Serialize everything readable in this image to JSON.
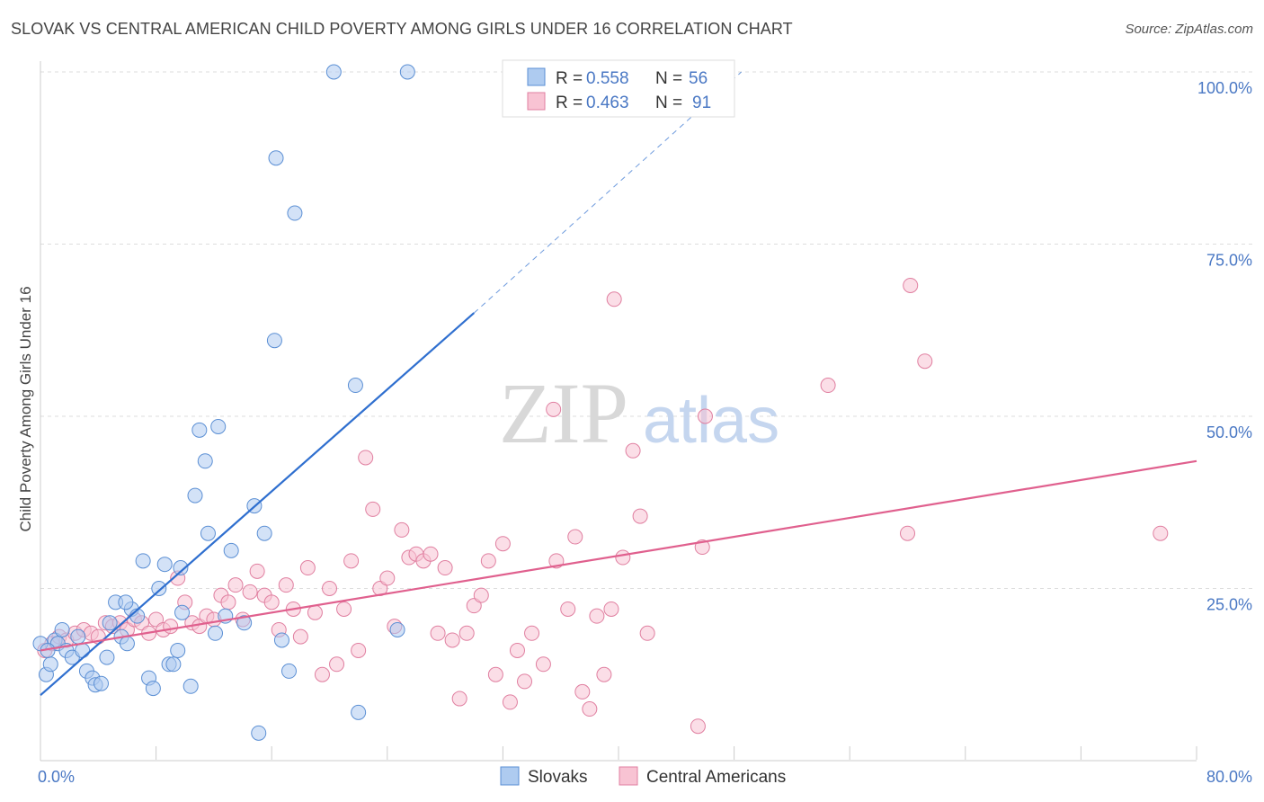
{
  "header": {
    "title": "SLOVAK VS CENTRAL AMERICAN CHILD POVERTY AMONG GIRLS UNDER 16 CORRELATION CHART",
    "source": "Source: ZipAtlas.com"
  },
  "watermark": {
    "zip": "ZIP",
    "atlas": "atlas"
  },
  "colors": {
    "slovak_fill": "#aecbf0",
    "slovak_stroke": "#5b8fd4",
    "slovak_line": "#2f6fcf",
    "central_fill": "#f8c3d3",
    "central_stroke": "#e07fa0",
    "central_line": "#e0608e",
    "tick": "#4a78c4",
    "grid": "#dddddd"
  },
  "legend_top": {
    "rows": [
      {
        "r_label": "R =",
        "r_value": "0.558",
        "n_label": "N =",
        "n_value": "56"
      },
      {
        "r_label": "R =",
        "r_value": "0.463",
        "n_label": "N =",
        "n_value": "91"
      }
    ]
  },
  "legend_bottom": {
    "items": [
      "Slovaks",
      "Central Americans"
    ]
  },
  "chart_data": {
    "type": "scatter",
    "title": "SLOVAK VS CENTRAL AMERICAN CHILD POVERTY AMONG GIRLS UNDER 16 CORRELATION CHART",
    "xlabel": "",
    "ylabel": "Child Poverty Among Girls Under 16",
    "xlim": [
      0,
      80
    ],
    "ylim": [
      0,
      100
    ],
    "x_tick_labels": [
      "0.0%",
      "80.0%"
    ],
    "y_tick_labels": [
      "25.0%",
      "50.0%",
      "75.0%",
      "100.0%"
    ],
    "y_ticks": [
      25,
      50,
      75,
      100
    ],
    "grid": true,
    "legend_position": "top-center",
    "series": [
      {
        "name": "Slovaks",
        "r": 0.558,
        "n": 56,
        "trend": {
          "x0": 0,
          "y0": 9.5,
          "x1": 30.0,
          "y1": 65.0,
          "dash_to_x": 48.5,
          "dash_to_y": 100
        },
        "points": [
          [
            0.0,
            17.0
          ],
          [
            0.4,
            12.5
          ],
          [
            0.7,
            14.0
          ],
          [
            1.0,
            17.5
          ],
          [
            1.2,
            17.0
          ],
          [
            1.5,
            19.0
          ],
          [
            1.8,
            16.0
          ],
          [
            2.2,
            15.0
          ],
          [
            2.6,
            18.0
          ],
          [
            3.2,
            13.0
          ],
          [
            3.6,
            12.0
          ],
          [
            3.8,
            11.0
          ],
          [
            4.2,
            11.2
          ],
          [
            4.8,
            20.0
          ],
          [
            5.2,
            23.0
          ],
          [
            5.6,
            18.0
          ],
          [
            6.0,
            17.0
          ],
          [
            6.3,
            22.0
          ],
          [
            6.7,
            21.0
          ],
          [
            7.1,
            29.0
          ],
          [
            7.5,
            12.0
          ],
          [
            7.8,
            10.5
          ],
          [
            8.2,
            25.0
          ],
          [
            8.6,
            28.5
          ],
          [
            8.9,
            14.0
          ],
          [
            9.2,
            14.0
          ],
          [
            9.7,
            28.0
          ],
          [
            9.8,
            21.5
          ],
          [
            10.4,
            10.8
          ],
          [
            10.7,
            38.5
          ],
          [
            11.0,
            48.0
          ],
          [
            11.4,
            43.5
          ],
          [
            11.6,
            33.0
          ],
          [
            12.1,
            18.5
          ],
          [
            12.3,
            48.5
          ],
          [
            12.8,
            21.0
          ],
          [
            13.2,
            30.5
          ],
          [
            14.1,
            20.0
          ],
          [
            14.8,
            37.0
          ],
          [
            15.1,
            4.0
          ],
          [
            15.5,
            33.0
          ],
          [
            16.2,
            61.0
          ],
          [
            16.3,
            87.5
          ],
          [
            16.7,
            17.5
          ],
          [
            17.2,
            13.0
          ],
          [
            17.6,
            79.5
          ],
          [
            20.3,
            100.0
          ],
          [
            21.8,
            54.5
          ],
          [
            22.0,
            7.0
          ],
          [
            24.7,
            19.0
          ],
          [
            25.4,
            100.0
          ],
          [
            4.6,
            15.0
          ],
          [
            5.9,
            23.0
          ],
          [
            0.5,
            16.0
          ],
          [
            9.5,
            16.0
          ],
          [
            2.9,
            16.0
          ]
        ]
      },
      {
        "name": "Central Americans",
        "r": 0.463,
        "n": 91,
        "trend": {
          "x0": 0,
          "y0": 16.0,
          "x1": 80,
          "y1": 43.5
        },
        "points": [
          [
            0.3,
            16.0
          ],
          [
            0.8,
            17.0
          ],
          [
            1.3,
            18.0
          ],
          [
            1.8,
            17.5
          ],
          [
            2.4,
            18.5
          ],
          [
            3.0,
            19.0
          ],
          [
            3.5,
            18.5
          ],
          [
            4.0,
            18.0
          ],
          [
            4.5,
            20.0
          ],
          [
            5.0,
            19.5
          ],
          [
            5.5,
            20.0
          ],
          [
            6.0,
            19.0
          ],
          [
            6.5,
            20.5
          ],
          [
            7.0,
            20.0
          ],
          [
            7.5,
            18.5
          ],
          [
            8.0,
            20.5
          ],
          [
            8.5,
            19.0
          ],
          [
            9.0,
            19.5
          ],
          [
            9.5,
            26.5
          ],
          [
            10.0,
            23.0
          ],
          [
            10.5,
            20.0
          ],
          [
            11.0,
            19.5
          ],
          [
            11.5,
            21.0
          ],
          [
            12.0,
            20.5
          ],
          [
            12.5,
            24.0
          ],
          [
            13.0,
            23.0
          ],
          [
            13.5,
            25.5
          ],
          [
            14.0,
            20.5
          ],
          [
            14.5,
            24.5
          ],
          [
            15.0,
            27.5
          ],
          [
            15.5,
            24.0
          ],
          [
            16.0,
            23.0
          ],
          [
            16.5,
            19.0
          ],
          [
            17.0,
            25.5
          ],
          [
            17.5,
            22.0
          ],
          [
            18.0,
            18.0
          ],
          [
            18.5,
            28.0
          ],
          [
            19.0,
            21.5
          ],
          [
            19.5,
            12.5
          ],
          [
            20.0,
            25.0
          ],
          [
            20.5,
            14.0
          ],
          [
            21.0,
            22.0
          ],
          [
            21.5,
            29.0
          ],
          [
            22.0,
            16.0
          ],
          [
            22.5,
            44.0
          ],
          [
            23.0,
            36.5
          ],
          [
            23.5,
            25.0
          ],
          [
            24.0,
            26.5
          ],
          [
            24.5,
            19.5
          ],
          [
            25.0,
            33.5
          ],
          [
            25.5,
            29.5
          ],
          [
            26.0,
            30.0
          ],
          [
            26.5,
            29.0
          ],
          [
            27.0,
            30.0
          ],
          [
            27.5,
            18.5
          ],
          [
            28.0,
            28.0
          ],
          [
            28.5,
            17.5
          ],
          [
            29.0,
            9.0
          ],
          [
            29.5,
            18.5
          ],
          [
            30.0,
            22.5
          ],
          [
            30.5,
            24.0
          ],
          [
            31.0,
            29.0
          ],
          [
            31.5,
            12.5
          ],
          [
            32.0,
            31.5
          ],
          [
            32.5,
            8.5
          ],
          [
            33.0,
            16.0
          ],
          [
            33.5,
            11.5
          ],
          [
            34.0,
            18.5
          ],
          [
            34.8,
            14.0
          ],
          [
            35.5,
            51.0
          ],
          [
            35.7,
            29.0
          ],
          [
            36.5,
            22.0
          ],
          [
            37.0,
            32.5
          ],
          [
            37.5,
            10.0
          ],
          [
            38.0,
            7.5
          ],
          [
            38.5,
            21.0
          ],
          [
            39.0,
            12.5
          ],
          [
            39.5,
            22.0
          ],
          [
            39.7,
            67.0
          ],
          [
            40.3,
            29.5
          ],
          [
            41.0,
            45.0
          ],
          [
            41.5,
            35.5
          ],
          [
            42.0,
            18.5
          ],
          [
            45.5,
            5.0
          ],
          [
            45.8,
            31.0
          ],
          [
            46.0,
            50.0
          ],
          [
            54.5,
            54.5
          ],
          [
            60.0,
            33.0
          ],
          [
            60.2,
            69.0
          ],
          [
            61.2,
            58.0
          ],
          [
            77.5,
            33.0
          ]
        ]
      }
    ]
  }
}
